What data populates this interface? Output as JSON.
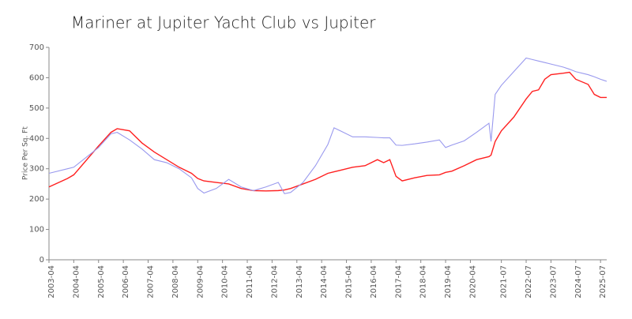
{
  "chart_data": {
    "type": "line",
    "title": "Mariner at Jupiter Yacht Club vs Jupiter",
    "y_label": "Price Per Sq. Ft",
    "x": [
      "2003-04",
      "2004-01",
      "2004-04",
      "2005-04",
      "2005-10",
      "2006-01",
      "2006-07",
      "2007-01",
      "2007-07",
      "2008-01",
      "2008-07",
      "2009-01",
      "2009-04",
      "2009-07",
      "2010-01",
      "2010-07",
      "2011-01",
      "2011-07",
      "2012-01",
      "2012-07",
      "2012-10",
      "2013-01",
      "2013-07",
      "2014-01",
      "2014-07",
      "2014-10",
      "2015-01",
      "2015-07",
      "2016-01",
      "2016-07",
      "2016-10",
      "2017-01",
      "2017-04",
      "2017-07",
      "2018-01",
      "2018-07",
      "2019-01",
      "2019-04",
      "2019-07",
      "2020-01",
      "2020-07",
      "2021-01",
      "2021-02",
      "2021-04",
      "2021-07",
      "2022-01",
      "2022-07",
      "2022-10",
      "2023-01",
      "2023-04",
      "2023-07",
      "2024-01",
      "2024-04",
      "2024-07",
      "2025-01",
      "2025-04",
      "2025-07",
      "2025-10"
    ],
    "series": [
      {
        "color": "#ff2020",
        "values": [
          240,
          268,
          280,
          375,
          420,
          432,
          425,
          385,
          355,
          330,
          305,
          285,
          268,
          260,
          255,
          250,
          235,
          228,
          227,
          228,
          230,
          235,
          250,
          265,
          285,
          290,
          295,
          305,
          310,
          330,
          320,
          330,
          275,
          260,
          270,
          278,
          280,
          288,
          292,
          310,
          330,
          340,
          345,
          390,
          425,
          470,
          530,
          555,
          560,
          595,
          610,
          615,
          618,
          595,
          578,
          545,
          535,
          535
        ]
      },
      {
        "color": "#9999ee",
        "values": [
          285,
          300,
          305,
          370,
          415,
          420,
          395,
          365,
          330,
          320,
          300,
          270,
          235,
          220,
          235,
          265,
          240,
          228,
          240,
          255,
          218,
          222,
          255,
          310,
          380,
          435,
          425,
          405,
          405,
          403,
          402,
          402,
          378,
          377,
          382,
          388,
          395,
          370,
          378,
          392,
          420,
          450,
          390,
          545,
          575,
          620,
          665,
          660,
          655,
          650,
          645,
          635,
          628,
          620,
          610,
          603,
          595,
          588
        ]
      }
    ],
    "xlim": [
      "2003-04",
      "2025-10"
    ],
    "xticks": [
      "2003-04",
      "2004-04",
      "2005-04",
      "2006-04",
      "2007-04",
      "2008-04",
      "2009-04",
      "2010-04",
      "2011-04",
      "2012-04",
      "2013-04",
      "2014-04",
      "2015-04",
      "2016-04",
      "2017-04",
      "2018-04",
      "2019-04",
      "2020-04",
      "2021-07",
      "2022-07",
      "2023-07",
      "2024-07",
      "2025-07"
    ],
    "ylim": [
      0,
      700
    ],
    "yticks": [
      0,
      100,
      200,
      300,
      400,
      500,
      600,
      700
    ],
    "grid": false
  }
}
